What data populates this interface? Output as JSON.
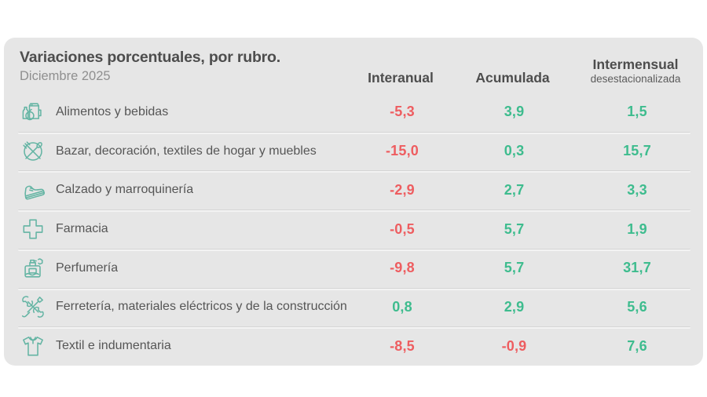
{
  "panel": {
    "title": "Variaciones porcentuales, por rubro.",
    "subtitle": "Diciembre 2025"
  },
  "columns": [
    {
      "label": "Interanual",
      "sublabel": ""
    },
    {
      "label": "Acumulada",
      "sublabel": ""
    },
    {
      "label": "Intermensual",
      "sublabel": "desestacionalizada"
    }
  ],
  "rows": [
    {
      "icon": "groceries-icon",
      "label": "Alimentos y bebidas",
      "interanual": "-5,3",
      "acumulada": "3,9",
      "intermensual": "1,5"
    },
    {
      "icon": "tableware-icon",
      "label": "Bazar, decoración, textiles de hogar y muebles",
      "interanual": "-15,0",
      "acumulada": "0,3",
      "intermensual": "15,7"
    },
    {
      "icon": "sneaker-icon",
      "label": "Calzado y marroquinería",
      "interanual": "-2,9",
      "acumulada": "2,7",
      "intermensual": "3,3"
    },
    {
      "icon": "pharmacy-cross-icon",
      "label": "Farmacia",
      "interanual": "-0,5",
      "acumulada": "5,7",
      "intermensual": "1,9"
    },
    {
      "icon": "perfume-icon",
      "label": "Perfumería",
      "interanual": "-9,8",
      "acumulada": "5,7",
      "intermensual": "31,7"
    },
    {
      "icon": "tools-icon",
      "label": "Ferretería, materiales eléctricos y de la construcción",
      "interanual": "0,8",
      "acumulada": "2,9",
      "intermensual": "5,6"
    },
    {
      "icon": "tshirt-icon",
      "label": "Textil e indumentaria",
      "interanual": "-8,5",
      "acumulada": "-0,9",
      "intermensual": "7,6"
    }
  ],
  "colors": {
    "positive": "#3ebc8e",
    "negative": "#ee5d60",
    "icon": "#63b4a3",
    "panel_bg": "#e6e6e6"
  },
  "chart_data": {
    "type": "table",
    "title": "Variaciones porcentuales, por rubro.",
    "subtitle": "Diciembre 2025",
    "columns": [
      "Interanual",
      "Acumulada",
      "Intermensual desestacionalizada"
    ],
    "categories": [
      "Alimentos y bebidas",
      "Bazar, decoración, textiles de hogar y muebles",
      "Calzado y marroquinería",
      "Farmacia",
      "Perfumería",
      "Ferretería, materiales eléctricos y de la construcción",
      "Textil e indumentaria"
    ],
    "series": [
      {
        "name": "Interanual",
        "values": [
          -5.3,
          -15.0,
          -2.9,
          -0.5,
          -9.8,
          0.8,
          -8.5
        ]
      },
      {
        "name": "Acumulada",
        "values": [
          3.9,
          0.3,
          2.7,
          5.7,
          5.7,
          2.9,
          -0.9
        ]
      },
      {
        "name": "Intermensual desestacionalizada",
        "values": [
          1.5,
          15.7,
          3.3,
          1.9,
          31.7,
          5.6,
          7.6
        ]
      }
    ]
  }
}
